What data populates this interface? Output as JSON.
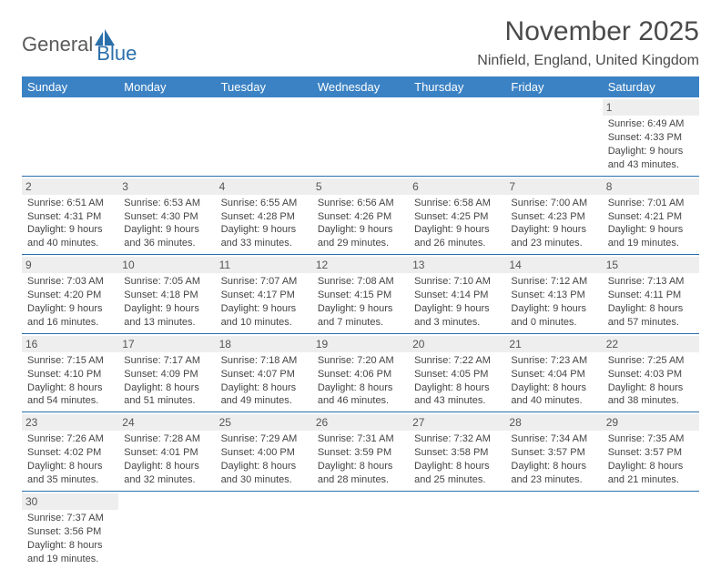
{
  "logo": {
    "text1": "General",
    "text2": "Blue"
  },
  "title": "November 2025",
  "location": "Ninfield, England, United Kingdom",
  "styling": {
    "header_bg": "#3b82c4",
    "header_fg": "#ffffff",
    "daynum_bg": "#eeeeee",
    "row_border": "#2b6fab",
    "title_fontsize": 30,
    "location_fontsize": 16,
    "dayheader_fontsize": 13,
    "cell_fontsize": 11,
    "logo_blue": "#2b6fab",
    "logo_gray": "#5a5a5a"
  },
  "day_headers": [
    "Sunday",
    "Monday",
    "Tuesday",
    "Wednesday",
    "Thursday",
    "Friday",
    "Saturday"
  ],
  "weeks": [
    [
      null,
      null,
      null,
      null,
      null,
      null,
      {
        "n": "1",
        "sunrise": "Sunrise: 6:49 AM",
        "sunset": "Sunset: 4:33 PM",
        "daylight1": "Daylight: 9 hours",
        "daylight2": "and 43 minutes."
      }
    ],
    [
      {
        "n": "2",
        "sunrise": "Sunrise: 6:51 AM",
        "sunset": "Sunset: 4:31 PM",
        "daylight1": "Daylight: 9 hours",
        "daylight2": "and 40 minutes."
      },
      {
        "n": "3",
        "sunrise": "Sunrise: 6:53 AM",
        "sunset": "Sunset: 4:30 PM",
        "daylight1": "Daylight: 9 hours",
        "daylight2": "and 36 minutes."
      },
      {
        "n": "4",
        "sunrise": "Sunrise: 6:55 AM",
        "sunset": "Sunset: 4:28 PM",
        "daylight1": "Daylight: 9 hours",
        "daylight2": "and 33 minutes."
      },
      {
        "n": "5",
        "sunrise": "Sunrise: 6:56 AM",
        "sunset": "Sunset: 4:26 PM",
        "daylight1": "Daylight: 9 hours",
        "daylight2": "and 29 minutes."
      },
      {
        "n": "6",
        "sunrise": "Sunrise: 6:58 AM",
        "sunset": "Sunset: 4:25 PM",
        "daylight1": "Daylight: 9 hours",
        "daylight2": "and 26 minutes."
      },
      {
        "n": "7",
        "sunrise": "Sunrise: 7:00 AM",
        "sunset": "Sunset: 4:23 PM",
        "daylight1": "Daylight: 9 hours",
        "daylight2": "and 23 minutes."
      },
      {
        "n": "8",
        "sunrise": "Sunrise: 7:01 AM",
        "sunset": "Sunset: 4:21 PM",
        "daylight1": "Daylight: 9 hours",
        "daylight2": "and 19 minutes."
      }
    ],
    [
      {
        "n": "9",
        "sunrise": "Sunrise: 7:03 AM",
        "sunset": "Sunset: 4:20 PM",
        "daylight1": "Daylight: 9 hours",
        "daylight2": "and 16 minutes."
      },
      {
        "n": "10",
        "sunrise": "Sunrise: 7:05 AM",
        "sunset": "Sunset: 4:18 PM",
        "daylight1": "Daylight: 9 hours",
        "daylight2": "and 13 minutes."
      },
      {
        "n": "11",
        "sunrise": "Sunrise: 7:07 AM",
        "sunset": "Sunset: 4:17 PM",
        "daylight1": "Daylight: 9 hours",
        "daylight2": "and 10 minutes."
      },
      {
        "n": "12",
        "sunrise": "Sunrise: 7:08 AM",
        "sunset": "Sunset: 4:15 PM",
        "daylight1": "Daylight: 9 hours",
        "daylight2": "and 7 minutes."
      },
      {
        "n": "13",
        "sunrise": "Sunrise: 7:10 AM",
        "sunset": "Sunset: 4:14 PM",
        "daylight1": "Daylight: 9 hours",
        "daylight2": "and 3 minutes."
      },
      {
        "n": "14",
        "sunrise": "Sunrise: 7:12 AM",
        "sunset": "Sunset: 4:13 PM",
        "daylight1": "Daylight: 9 hours",
        "daylight2": "and 0 minutes."
      },
      {
        "n": "15",
        "sunrise": "Sunrise: 7:13 AM",
        "sunset": "Sunset: 4:11 PM",
        "daylight1": "Daylight: 8 hours",
        "daylight2": "and 57 minutes."
      }
    ],
    [
      {
        "n": "16",
        "sunrise": "Sunrise: 7:15 AM",
        "sunset": "Sunset: 4:10 PM",
        "daylight1": "Daylight: 8 hours",
        "daylight2": "and 54 minutes."
      },
      {
        "n": "17",
        "sunrise": "Sunrise: 7:17 AM",
        "sunset": "Sunset: 4:09 PM",
        "daylight1": "Daylight: 8 hours",
        "daylight2": "and 51 minutes."
      },
      {
        "n": "18",
        "sunrise": "Sunrise: 7:18 AM",
        "sunset": "Sunset: 4:07 PM",
        "daylight1": "Daylight: 8 hours",
        "daylight2": "and 49 minutes."
      },
      {
        "n": "19",
        "sunrise": "Sunrise: 7:20 AM",
        "sunset": "Sunset: 4:06 PM",
        "daylight1": "Daylight: 8 hours",
        "daylight2": "and 46 minutes."
      },
      {
        "n": "20",
        "sunrise": "Sunrise: 7:22 AM",
        "sunset": "Sunset: 4:05 PM",
        "daylight1": "Daylight: 8 hours",
        "daylight2": "and 43 minutes."
      },
      {
        "n": "21",
        "sunrise": "Sunrise: 7:23 AM",
        "sunset": "Sunset: 4:04 PM",
        "daylight1": "Daylight: 8 hours",
        "daylight2": "and 40 minutes."
      },
      {
        "n": "22",
        "sunrise": "Sunrise: 7:25 AM",
        "sunset": "Sunset: 4:03 PM",
        "daylight1": "Daylight: 8 hours",
        "daylight2": "and 38 minutes."
      }
    ],
    [
      {
        "n": "23",
        "sunrise": "Sunrise: 7:26 AM",
        "sunset": "Sunset: 4:02 PM",
        "daylight1": "Daylight: 8 hours",
        "daylight2": "and 35 minutes."
      },
      {
        "n": "24",
        "sunrise": "Sunrise: 7:28 AM",
        "sunset": "Sunset: 4:01 PM",
        "daylight1": "Daylight: 8 hours",
        "daylight2": "and 32 minutes."
      },
      {
        "n": "25",
        "sunrise": "Sunrise: 7:29 AM",
        "sunset": "Sunset: 4:00 PM",
        "daylight1": "Daylight: 8 hours",
        "daylight2": "and 30 minutes."
      },
      {
        "n": "26",
        "sunrise": "Sunrise: 7:31 AM",
        "sunset": "Sunset: 3:59 PM",
        "daylight1": "Daylight: 8 hours",
        "daylight2": "and 28 minutes."
      },
      {
        "n": "27",
        "sunrise": "Sunrise: 7:32 AM",
        "sunset": "Sunset: 3:58 PM",
        "daylight1": "Daylight: 8 hours",
        "daylight2": "and 25 minutes."
      },
      {
        "n": "28",
        "sunrise": "Sunrise: 7:34 AM",
        "sunset": "Sunset: 3:57 PM",
        "daylight1": "Daylight: 8 hours",
        "daylight2": "and 23 minutes."
      },
      {
        "n": "29",
        "sunrise": "Sunrise: 7:35 AM",
        "sunset": "Sunset: 3:57 PM",
        "daylight1": "Daylight: 8 hours",
        "daylight2": "and 21 minutes."
      }
    ],
    [
      {
        "n": "30",
        "sunrise": "Sunrise: 7:37 AM",
        "sunset": "Sunset: 3:56 PM",
        "daylight1": "Daylight: 8 hours",
        "daylight2": "and 19 minutes."
      },
      null,
      null,
      null,
      null,
      null,
      null
    ]
  ]
}
